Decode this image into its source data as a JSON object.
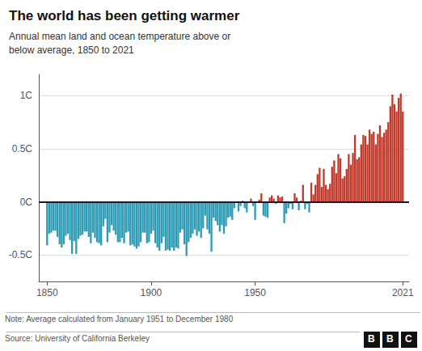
{
  "chart_data": {
    "type": "bar",
    "title": "The world has been getting warmer",
    "subtitle": "Annual mean land and ocean temperature above or\nbelow average, 1850 to 2021",
    "annotations": [
      "Note: Average calculated from January 1951 to December 1980",
      "Source: University of California Berkeley",
      "B",
      "B",
      "C"
    ],
    "x": [
      1850,
      1851,
      1852,
      1853,
      1854,
      1855,
      1856,
      1857,
      1858,
      1859,
      1860,
      1861,
      1862,
      1863,
      1864,
      1865,
      1866,
      1867,
      1868,
      1869,
      1870,
      1871,
      1872,
      1873,
      1874,
      1875,
      1876,
      1877,
      1878,
      1879,
      1880,
      1881,
      1882,
      1883,
      1884,
      1885,
      1886,
      1887,
      1888,
      1889,
      1890,
      1891,
      1892,
      1893,
      1894,
      1895,
      1896,
      1897,
      1898,
      1899,
      1900,
      1901,
      1902,
      1903,
      1904,
      1905,
      1906,
      1907,
      1908,
      1909,
      1910,
      1911,
      1912,
      1913,
      1914,
      1915,
      1916,
      1917,
      1918,
      1919,
      1920,
      1921,
      1922,
      1923,
      1924,
      1925,
      1926,
      1927,
      1928,
      1929,
      1930,
      1931,
      1932,
      1933,
      1934,
      1935,
      1936,
      1937,
      1938,
      1939,
      1940,
      1941,
      1942,
      1943,
      1944,
      1945,
      1946,
      1947,
      1948,
      1949,
      1950,
      1951,
      1952,
      1953,
      1954,
      1955,
      1956,
      1957,
      1958,
      1959,
      1960,
      1961,
      1962,
      1963,
      1964,
      1965,
      1966,
      1967,
      1968,
      1969,
      1970,
      1971,
      1972,
      1973,
      1974,
      1975,
      1976,
      1977,
      1978,
      1979,
      1980,
      1981,
      1982,
      1983,
      1984,
      1985,
      1986,
      1987,
      1988,
      1989,
      1990,
      1991,
      1992,
      1993,
      1994,
      1995,
      1996,
      1997,
      1998,
      1999,
      2000,
      2001,
      2002,
      2003,
      2004,
      2005,
      2006,
      2007,
      2008,
      2009,
      2010,
      2011,
      2012,
      2013,
      2014,
      2015,
      2016,
      2017,
      2018,
      2019,
      2020,
      2021
    ],
    "values": [
      -0.41,
      -0.3,
      -0.29,
      -0.27,
      -0.27,
      -0.33,
      -0.4,
      -0.43,
      -0.4,
      -0.32,
      -0.3,
      -0.36,
      -0.49,
      -0.37,
      -0.49,
      -0.35,
      -0.32,
      -0.31,
      -0.28,
      -0.28,
      -0.33,
      -0.39,
      -0.29,
      -0.34,
      -0.38,
      -0.39,
      -0.41,
      -0.23,
      -0.16,
      -0.38,
      -0.29,
      -0.22,
      -0.27,
      -0.31,
      -0.38,
      -0.38,
      -0.34,
      -0.39,
      -0.29,
      -0.28,
      -0.41,
      -0.4,
      -0.42,
      -0.44,
      -0.42,
      -0.38,
      -0.29,
      -0.29,
      -0.39,
      -0.38,
      -0.3,
      -0.27,
      -0.39,
      -0.43,
      -0.46,
      -0.39,
      -0.33,
      -0.46,
      -0.45,
      -0.46,
      -0.43,
      -0.46,
      -0.43,
      -0.44,
      -0.29,
      -0.26,
      -0.4,
      -0.51,
      -0.38,
      -0.34,
      -0.3,
      -0.26,
      -0.32,
      -0.28,
      -0.34,
      -0.25,
      -0.13,
      -0.26,
      -0.3,
      -0.47,
      -0.15,
      -0.18,
      -0.22,
      -0.28,
      -0.22,
      -0.3,
      -0.23,
      -0.15,
      -0.14,
      -0.17,
      -0.06,
      -0.01,
      -0.09,
      -0.04,
      0.01,
      -0.06,
      -0.1,
      0.0,
      0.03,
      -0.04,
      -0.17,
      -0.01,
      0.02,
      0.08,
      -0.13,
      -0.14,
      -0.15,
      0.04,
      0.06,
      0.03,
      -0.02,
      0.06,
      0.04,
      0.05,
      -0.2,
      -0.11,
      -0.06,
      -0.02,
      -0.07,
      0.08,
      0.04,
      -0.08,
      0.01,
      0.16,
      -0.07,
      -0.02,
      -0.1,
      0.18,
      0.07,
      0.16,
      0.26,
      0.32,
      0.14,
      0.31,
      0.16,
      0.12,
      0.17,
      0.33,
      0.39,
      0.27,
      0.45,
      0.41,
      0.22,
      0.24,
      0.31,
      0.45,
      0.35,
      0.46,
      0.63,
      0.4,
      0.42,
      0.54,
      0.63,
      0.62,
      0.54,
      0.68,
      0.64,
      0.66,
      0.54,
      0.64,
      0.72,
      0.61,
      0.65,
      0.68,
      0.75,
      0.9,
      1.01,
      0.92,
      0.85,
      0.98,
      1.02,
      0.85
    ],
    "colors": [
      "#2e9bb5",
      "#2e9bb5",
      "#2e9bb5",
      "#2e9bb5",
      "#2e9bb5",
      "#2e9bb5",
      "#2e9bb5",
      "#2e9bb5",
      "#2e9bb5",
      "#2e9bb5",
      "#2e9bb5",
      "#2e9bb5",
      "#2e9bb5",
      "#2e9bb5",
      "#2e9bb5",
      "#2e9bb5",
      "#2e9bb5",
      "#2e9bb5",
      "#2e9bb5",
      "#2e9bb5",
      "#2e9bb5",
      "#2e9bb5",
      "#2e9bb5",
      "#2e9bb5",
      "#2e9bb5",
      "#2e9bb5",
      "#2e9bb5",
      "#2e9bb5",
      "#2e9bb5",
      "#2e9bb5",
      "#2e9bb5",
      "#2e9bb5",
      "#2e9bb5",
      "#2e9bb5",
      "#2e9bb5",
      "#2e9bb5",
      "#2e9bb5",
      "#2e9bb5",
      "#2e9bb5",
      "#2e9bb5",
      "#2e9bb5",
      "#2e9bb5",
      "#2e9bb5",
      "#2e9bb5",
      "#2e9bb5",
      "#2e9bb5",
      "#2e9bb5",
      "#2e9bb5",
      "#2e9bb5",
      "#2e9bb5",
      "#2e9bb5",
      "#2e9bb5",
      "#2e9bb5",
      "#2e9bb5",
      "#2e9bb5",
      "#2e9bb5",
      "#2e9bb5",
      "#2e9bb5",
      "#2e9bb5",
      "#2e9bb5",
      "#2e9bb5",
      "#2e9bb5",
      "#2e9bb5",
      "#2e9bb5",
      "#2e9bb5",
      "#2e9bb5",
      "#2e9bb5",
      "#2e9bb5",
      "#2e9bb5",
      "#2e9bb5",
      "#2e9bb5",
      "#2e9bb5",
      "#2e9bb5",
      "#2e9bb5",
      "#2e9bb5",
      "#2e9bb5",
      "#2e9bb5",
      "#2e9bb5",
      "#2e9bb5",
      "#2e9bb5",
      "#2e9bb5",
      "#2e9bb5",
      "#2e9bb5",
      "#2e9bb5",
      "#2e9bb5",
      "#2e9bb5",
      "#2e9bb5",
      "#2e9bb5",
      "#2e9bb5",
      "#2e9bb5",
      "#2e9bb5",
      "#2e9bb5",
      "#2e9bb5",
      "#2e9bb5",
      "#c0392b",
      "#2e9bb5",
      "#2e9bb5",
      "#c0392b",
      "#c0392b",
      "#2e9bb5",
      "#2e9bb5",
      "#2e9bb5",
      "#c0392b",
      "#c0392b",
      "#2e9bb5",
      "#2e9bb5",
      "#2e9bb5",
      "#c0392b",
      "#c0392b",
      "#c0392b",
      "#2e9bb5",
      "#c0392b",
      "#c0392b",
      "#c0392b",
      "#2e9bb5",
      "#2e9bb5",
      "#2e9bb5",
      "#2e9bb5",
      "#2e9bb5",
      "#c0392b",
      "#c0392b",
      "#2e9bb5",
      "#c0392b",
      "#c0392b",
      "#2e9bb5",
      "#2e9bb5",
      "#2e9bb5",
      "#c0392b",
      "#c0392b",
      "#c0392b",
      "#c0392b",
      "#c0392b",
      "#c0392b",
      "#c0392b",
      "#c0392b",
      "#c0392b",
      "#c0392b",
      "#c0392b",
      "#c0392b",
      "#c0392b",
      "#c0392b",
      "#c0392b",
      "#c0392b",
      "#c0392b",
      "#c0392b",
      "#c0392b",
      "#c0392b",
      "#c0392b",
      "#c0392b",
      "#c0392b",
      "#c0392b",
      "#c0392b",
      "#c0392b",
      "#c0392b",
      "#c0392b",
      "#c0392b",
      "#c0392b",
      "#c0392b",
      "#c0392b",
      "#c0392b",
      "#c0392b",
      "#c0392b",
      "#c0392b",
      "#c0392b",
      "#c0392b",
      "#c0392b",
      "#c0392b",
      "#c0392b",
      "#c0392b",
      "#c0392b",
      "#c0392b",
      "#c0392b"
    ],
    "xlim": [
      1846,
      2024
    ],
    "xticks": [
      1850,
      1900,
      1950,
      2021
    ],
    "ylim": [
      -0.75,
      1.2
    ],
    "yticks": [
      {
        "value": -0.5,
        "label": "-0.5C"
      },
      {
        "value": 0,
        "label": "0C"
      },
      {
        "value": 0.5,
        "label": "0.5C"
      },
      {
        "value": 1.0,
        "label": "1C"
      }
    ],
    "grid": true
  }
}
